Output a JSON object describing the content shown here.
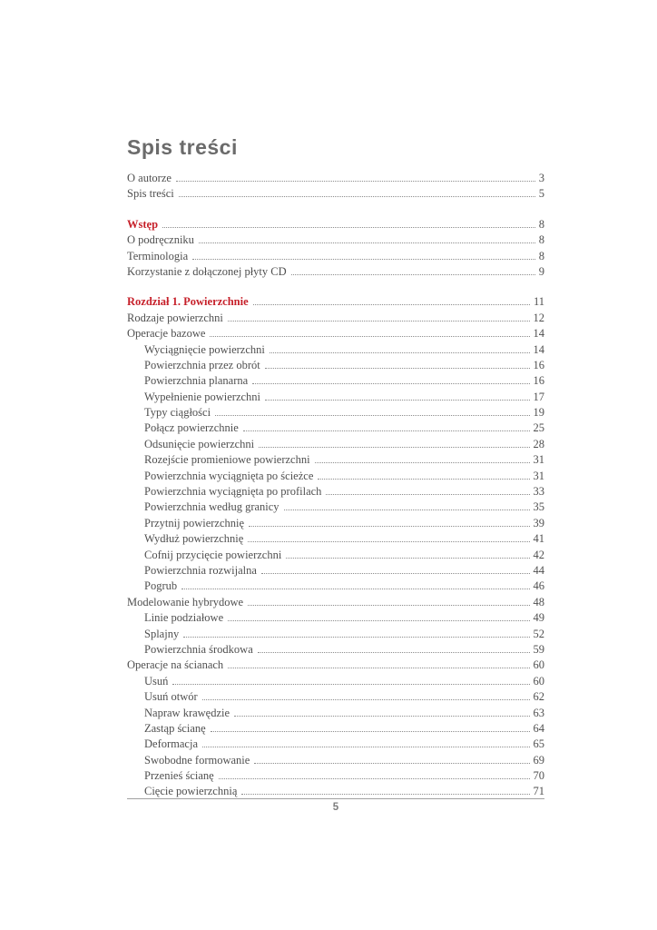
{
  "page": {
    "title": "Spis treści",
    "footer_page_number": "5"
  },
  "colors": {
    "accent_red": "#c6202a",
    "title_gray": "#6b6b6b",
    "body_text": "#4f4f4f",
    "leader_dots": "#8c8c8c",
    "footer_line": "#a0a0a0",
    "footer_text": "#7d7d7d"
  },
  "toc": {
    "groups": [
      {
        "entries": [
          {
            "label": "O autorze",
            "page": "3",
            "red": false,
            "indent": 0
          },
          {
            "label": "Spis treści",
            "page": "5",
            "red": false,
            "indent": 0
          }
        ]
      },
      {
        "entries": [
          {
            "label": "Wstęp",
            "page": "8",
            "red": true,
            "indent": 0
          },
          {
            "label": "O podręczniku",
            "page": "8",
            "red": false,
            "indent": 0
          },
          {
            "label": "Terminologia",
            "page": "8",
            "red": false,
            "indent": 0
          },
          {
            "label": "Korzystanie z dołączonej płyty CD",
            "page": "9",
            "red": false,
            "indent": 0
          }
        ]
      },
      {
        "entries": [
          {
            "label": "Rozdział 1. Powierzchnie",
            "page": "11",
            "red": true,
            "indent": 0
          },
          {
            "label": "Rodzaje powierzchni",
            "page": "12",
            "red": false,
            "indent": 0
          },
          {
            "label": "Operacje bazowe",
            "page": "14",
            "red": false,
            "indent": 0
          },
          {
            "label": "Wyciągnięcie powierzchni",
            "page": "14",
            "red": false,
            "indent": 1
          },
          {
            "label": "Powierzchnia przez obrót",
            "page": "16",
            "red": false,
            "indent": 1
          },
          {
            "label": "Powierzchnia planarna",
            "page": "16",
            "red": false,
            "indent": 1
          },
          {
            "label": "Wypełnienie powierzchni",
            "page": "17",
            "red": false,
            "indent": 1
          },
          {
            "label": "Typy ciągłości",
            "page": "19",
            "red": false,
            "indent": 1
          },
          {
            "label": "Połącz powierzchnie",
            "page": "25",
            "red": false,
            "indent": 1
          },
          {
            "label": "Odsunięcie powierzchni",
            "page": "28",
            "red": false,
            "indent": 1
          },
          {
            "label": "Rozejście promieniowe powierzchni",
            "page": "31",
            "red": false,
            "indent": 1
          },
          {
            "label": "Powierzchnia wyciągnięta po ścieżce",
            "page": "31",
            "red": false,
            "indent": 1
          },
          {
            "label": "Powierzchnia wyciągnięta po profilach",
            "page": "33",
            "red": false,
            "indent": 1
          },
          {
            "label": "Powierzchnia według granicy",
            "page": "35",
            "red": false,
            "indent": 1
          },
          {
            "label": "Przytnij powierzchnię",
            "page": "39",
            "red": false,
            "indent": 1
          },
          {
            "label": "Wydłuż powierzchnię",
            "page": "41",
            "red": false,
            "indent": 1
          },
          {
            "label": "Cofnij przycięcie powierzchni",
            "page": "42",
            "red": false,
            "indent": 1
          },
          {
            "label": "Powierzchnia rozwijalna",
            "page": "44",
            "red": false,
            "indent": 1
          },
          {
            "label": "Pogrub",
            "page": "46",
            "red": false,
            "indent": 1
          },
          {
            "label": "Modelowanie hybrydowe",
            "page": "48",
            "red": false,
            "indent": 0
          },
          {
            "label": "Linie podziałowe",
            "page": "49",
            "red": false,
            "indent": 1
          },
          {
            "label": "Splajny",
            "page": "52",
            "red": false,
            "indent": 1
          },
          {
            "label": "Powierzchnia środkowa",
            "page": "59",
            "red": false,
            "indent": 1
          },
          {
            "label": "Operacje na ścianach",
            "page": "60",
            "red": false,
            "indent": 0
          },
          {
            "label": "Usuń",
            "page": "60",
            "red": false,
            "indent": 1
          },
          {
            "label": "Usuń otwór",
            "page": "62",
            "red": false,
            "indent": 1
          },
          {
            "label": "Napraw krawędzie",
            "page": "63",
            "red": false,
            "indent": 1
          },
          {
            "label": "Zastąp ścianę",
            "page": "64",
            "red": false,
            "indent": 1
          },
          {
            "label": "Deformacja",
            "page": "65",
            "red": false,
            "indent": 1
          },
          {
            "label": "Swobodne formowanie",
            "page": "69",
            "red": false,
            "indent": 1
          },
          {
            "label": "Przenieś ścianę",
            "page": "70",
            "red": false,
            "indent": 1
          },
          {
            "label": "Cięcie powierzchnią",
            "page": "71",
            "red": false,
            "indent": 1
          }
        ]
      }
    ]
  }
}
